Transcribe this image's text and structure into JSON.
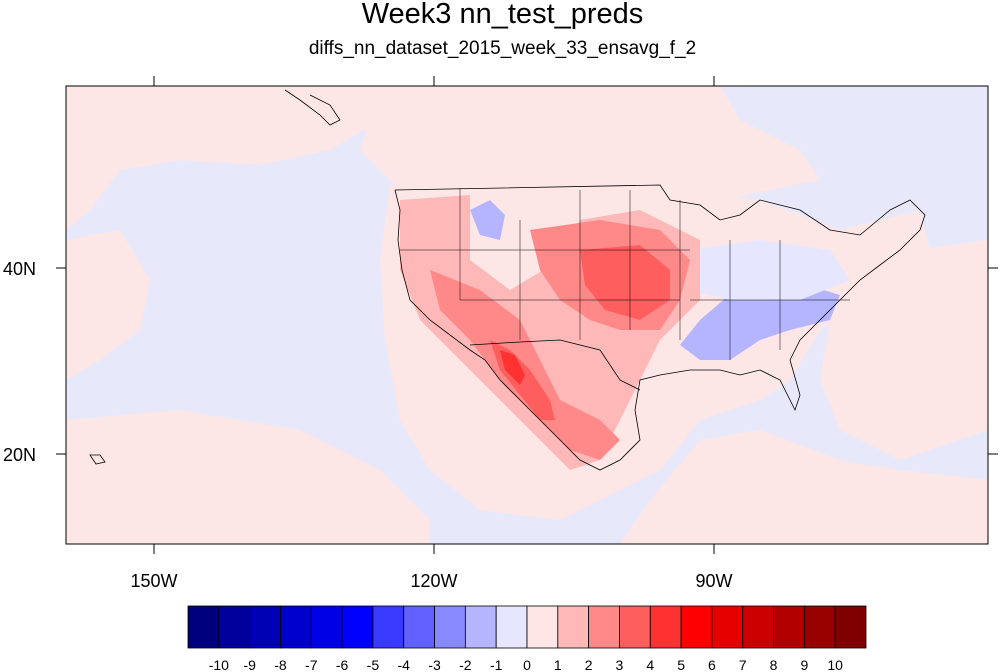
{
  "title": "Week3 nn_test_preds",
  "subtitle": "diffs_nn_dataset_2015_week_33_ensavg_f_2",
  "axes": {
    "lon_labels": [
      "150W",
      "120W",
      "90W"
    ],
    "lat_labels": [
      "40N",
      "20N"
    ]
  },
  "colorbar": {
    "labels": [
      "-10",
      "-9",
      "-8",
      "-7",
      "-6",
      "-5",
      "-4",
      "-3",
      "-2",
      "-1",
      "0",
      "1",
      "2",
      "3",
      "4",
      "5",
      "6",
      "7",
      "8",
      "9",
      "10"
    ],
    "colors": [
      "#00007f",
      "#00009a",
      "#0000b4",
      "#0000cd",
      "#0000e6",
      "#0000ff",
      "#3a3aff",
      "#6161ff",
      "#8888ff",
      "#b5b5ff",
      "#e6e6ff",
      "#ffe6e6",
      "#ffb8b8",
      "#ff8888",
      "#ff5e5e",
      "#ff3232",
      "#ff0000",
      "#e60000",
      "#cc0000",
      "#b20000",
      "#990000",
      "#7f0000"
    ]
  },
  "map": {
    "background_color": "#e6e6fa",
    "ocean_anomaly_color": "#fde6e6"
  }
}
